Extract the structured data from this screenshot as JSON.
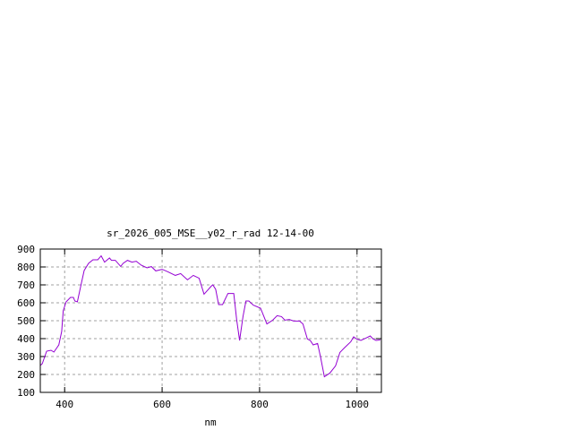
{
  "chart_data": {
    "type": "line",
    "title": "sr_2026_005_MSE__y02_r_rad 12-14-00",
    "xlabel": "nm",
    "ylabel": "",
    "xlim": [
      350,
      1050
    ],
    "ylim": [
      100,
      900
    ],
    "xticks": [
      400,
      600,
      800,
      1000
    ],
    "yticks": [
      100,
      200,
      300,
      400,
      500,
      600,
      700,
      800,
      900
    ],
    "grid": true,
    "legend": "none",
    "line_color": "#9400d3",
    "series": [
      {
        "x": [
          347,
          354,
          363,
          372,
          378,
          388,
          394,
          397,
          403,
          412,
          418,
          421,
          426,
          434,
          440,
          449,
          458,
          468,
          475,
          482,
          492,
          496,
          504,
          515,
          520,
          529,
          538,
          547,
          557,
          569,
          578,
          587,
          600,
          612,
          627,
          638,
          652,
          664,
          676,
          686,
          701,
          704,
          710,
          716,
          724,
          735,
          747,
          753,
          759,
          766,
          772,
          778,
          787,
          802,
          815,
          827,
          836,
          845,
          852,
          861,
          870,
          882,
          889,
          898,
          904,
          910,
          919,
          925,
          933,
          944,
          956,
          965,
          974,
          987,
          993,
          999,
          1008,
          1018,
          1027,
          1033,
          1039,
          1048
        ],
        "y": [
          250,
          260,
          330,
          335,
          325,
          365,
          440,
          555,
          605,
          630,
          630,
          610,
          605,
          705,
          780,
          820,
          840,
          840,
          862,
          827,
          850,
          837,
          837,
          803,
          820,
          837,
          827,
          832,
          810,
          795,
          802,
          778,
          787,
          773,
          753,
          763,
          728,
          753,
          737,
          648,
          693,
          700,
          675,
          590,
          590,
          652,
          652,
          507,
          390,
          523,
          610,
          610,
          587,
          570,
          482,
          503,
          528,
          523,
          503,
          507,
          498,
          498,
          482,
          398,
          390,
          365,
          373,
          298,
          187,
          207,
          248,
          323,
          348,
          382,
          410,
          398,
          390,
          403,
          415,
          398,
          390,
          393
        ]
      }
    ]
  }
}
